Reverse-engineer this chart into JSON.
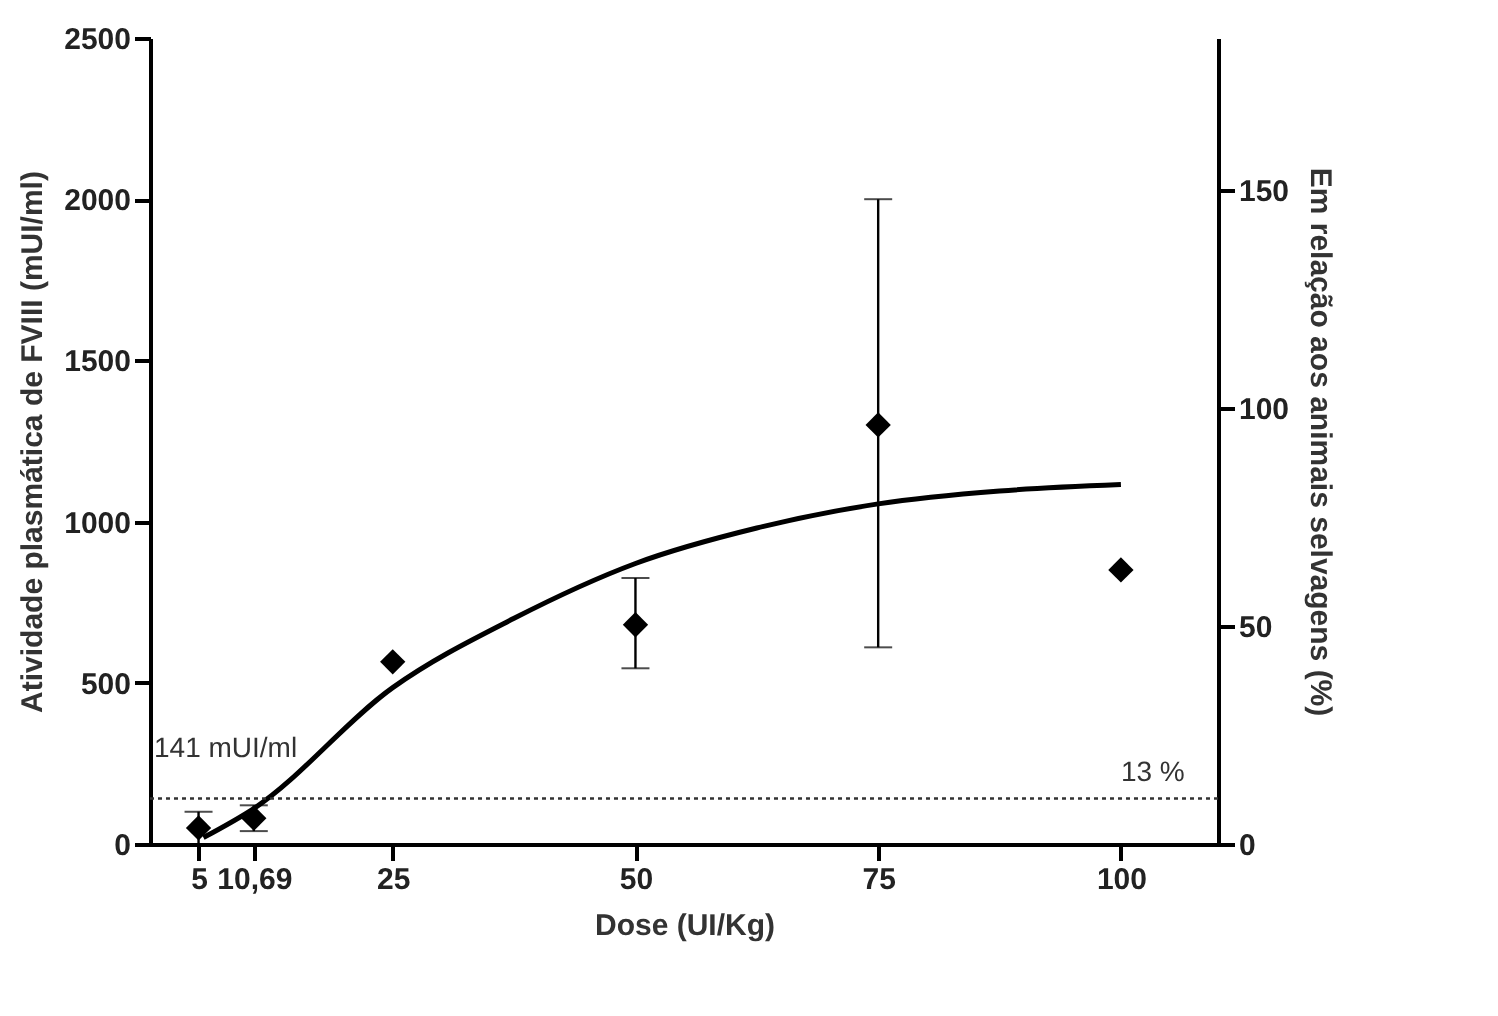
{
  "chart_data": {
    "type": "scatter",
    "xlabel": "Dose (UI/Kg)",
    "ylabel": "Atividade plasmática de FVIII (mUI/ml)",
    "y2label": "Em relação aos animais selvagens (%)",
    "xlim": [
      0,
      110
    ],
    "xticks": [
      5,
      {
        "value": 10.69,
        "label": "10,69"
      },
      25,
      50,
      75,
      100
    ],
    "ylim": [
      0,
      2500
    ],
    "yticks": [
      0,
      500,
      1000,
      1500,
      2000,
      2500
    ],
    "y2lim": [
      0,
      185
    ],
    "y2ticks": [
      0,
      50,
      100,
      150
    ],
    "series": [
      {
        "color": "#000000",
        "marker": "diamond",
        "x": [
          5,
          10.69,
          25,
          50,
          75,
          100
        ],
        "values": [
          50,
          80,
          565,
          680,
          1300,
          850
        ],
        "errors": [
          50,
          40,
          null,
          [
            545,
            825
          ],
          [
            610,
            2000
          ],
          null
        ]
      },
      {
        "type": "line",
        "color": "#000000",
        "line_style": "solid",
        "x": [
          5.5,
          10.69,
          25,
          37.5,
          50,
          62.5,
          75,
          87.5,
          100
        ],
        "values": [
          20,
          110,
          485,
          700,
          870,
          980,
          1055,
          1095,
          1115
        ]
      }
    ],
    "ref_lines": [
      {
        "axis": "y",
        "value": 141,
        "label": "141 mUI/ml",
        "line_style": "dotted"
      }
    ],
    "annotations": [
      {
        "text": "13 %",
        "x": 100,
        "y": 141
      }
    ],
    "grid": false
  }
}
